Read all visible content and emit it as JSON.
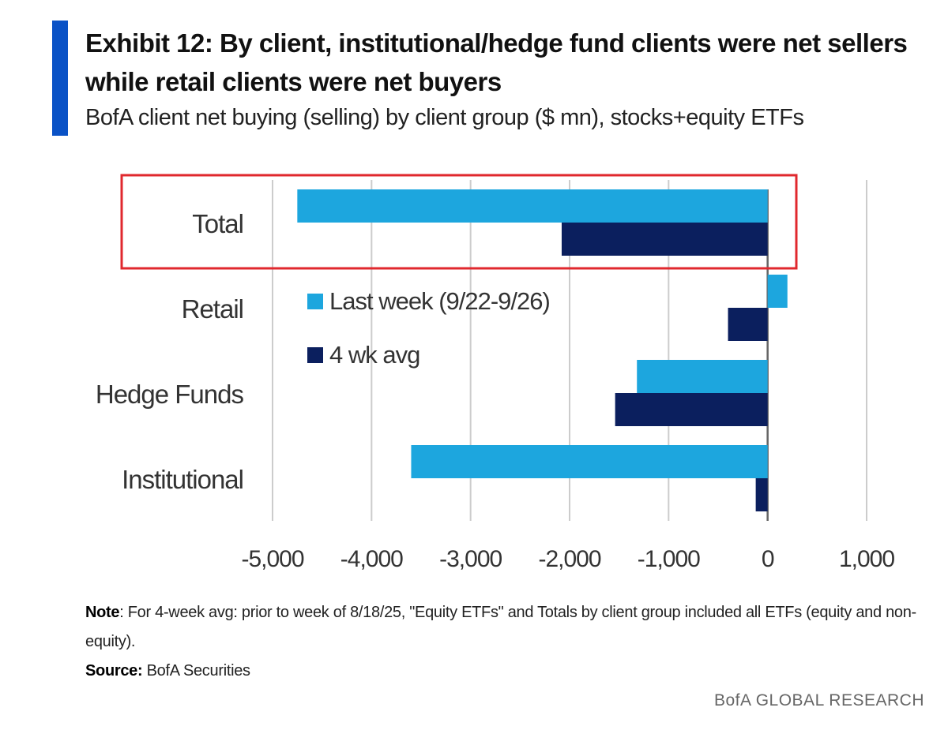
{
  "header": {
    "title": "Exhibit 12: By client, institutional/hedge fund clients were net sellers while retail clients were net buyers",
    "subtitle": "BofA client net buying (selling) by client group ($ mn), stocks+equity ETFs"
  },
  "colors": {
    "accent": "#0a52c6",
    "last_week": "#1da6de",
    "four_wk": "#0b1f5e",
    "highlight_box": "#e0282e",
    "grid": "#cccccc"
  },
  "chart_data": {
    "type": "bar",
    "orientation": "horizontal",
    "categories": [
      "Total",
      "Retail",
      "Hedge Funds",
      "Institutional"
    ],
    "series": [
      {
        "name": "Last week (9/22-9/26)",
        "values": [
          -4750,
          200,
          -1320,
          -3600
        ]
      },
      {
        "name": "4 wk avg",
        "values": [
          -2080,
          -400,
          -1540,
          -120
        ]
      }
    ],
    "xlim": [
      -5000,
      1000
    ],
    "xticks": [
      -5000,
      -4000,
      -3000,
      -2000,
      -1000,
      0,
      1000
    ],
    "xtick_labels": [
      "-5,000",
      "-4,000",
      "-3,000",
      "-2,000",
      "-1,000",
      "0",
      "1,000"
    ],
    "highlighted_category": "Total",
    "legend_position": "middle-left inside plot",
    "grid": "vertical"
  },
  "notes": {
    "note_label": "Note",
    "note_text": ": For 4-week avg: prior to week of 8/18/25, \"Equity ETFs\" and Totals by client group included all ETFs (equity and non-equity).",
    "source_label": "Source:",
    "source_text": " BofA Securities"
  },
  "footer": {
    "brand": "BofA GLOBAL RESEARCH"
  }
}
